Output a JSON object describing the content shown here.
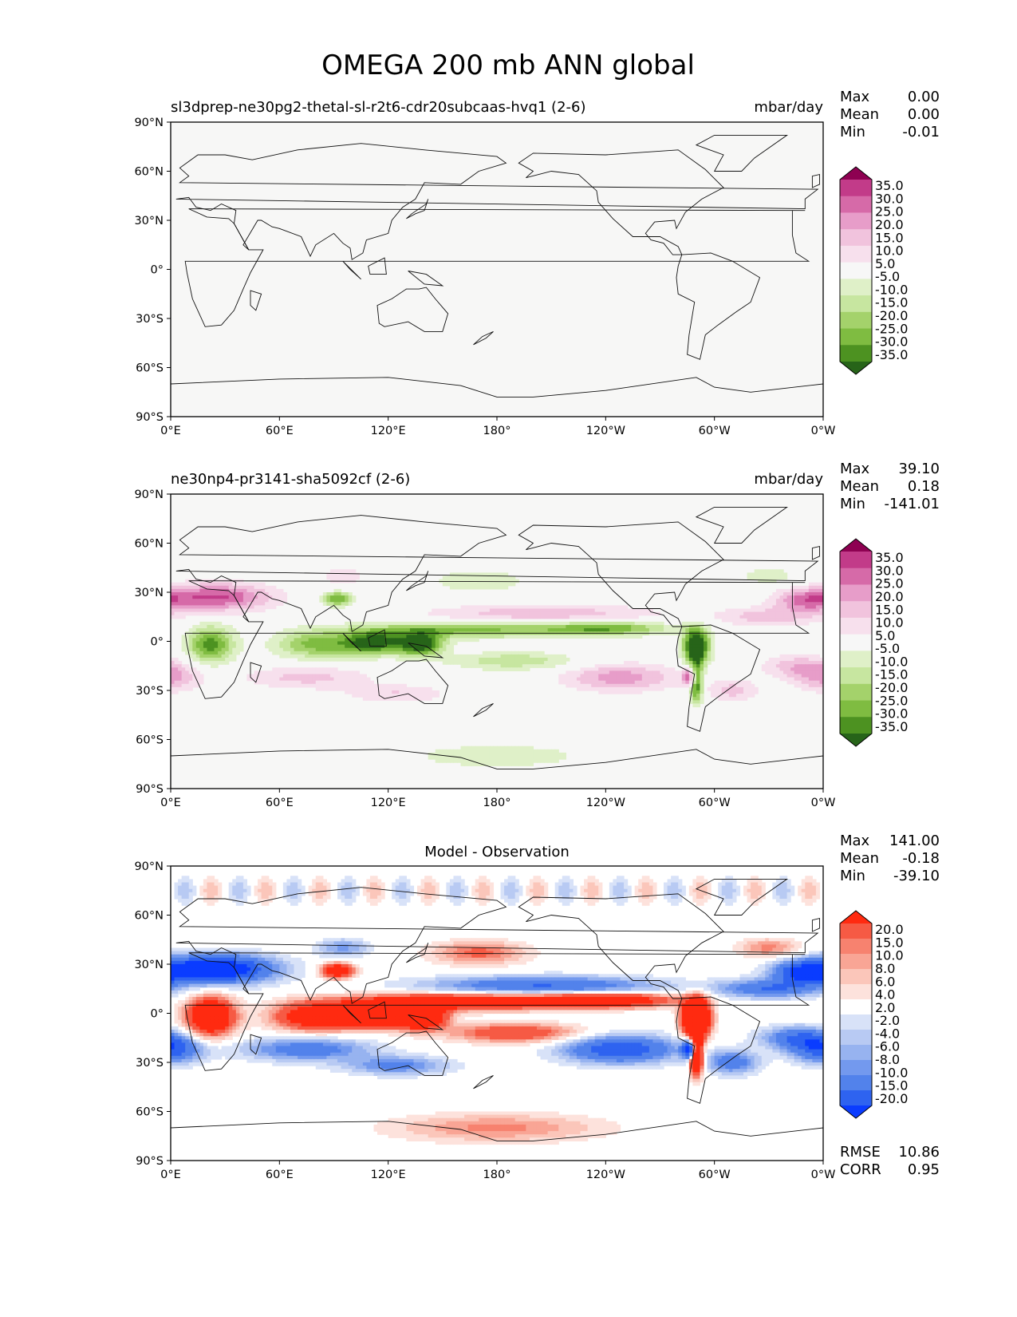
{
  "figure": {
    "title": "OMEGA 200 mb ANN global"
  },
  "colors": {
    "land_bg": "#f7f7f6",
    "coast": "#111111",
    "piyg": [
      "#276419",
      "#4d9221",
      "#7fbc41",
      "#a4d26b",
      "#c7e6a0",
      "#dff0c8",
      "#f7f7f7",
      "#f7e0ed",
      "#f1c3dd",
      "#e79dc9",
      "#d66aa8",
      "#c23b89",
      "#8e0152"
    ],
    "diff": [
      "#0a3cff",
      "#2e63f0",
      "#5282eb",
      "#7399ee",
      "#97b3f0",
      "#b8caf3",
      "#d8e2f8",
      "#ffffff",
      "#fde2dc",
      "#fbc6ba",
      "#f9a595",
      "#f7826f",
      "#f65a44",
      "#ff2a10"
    ]
  },
  "chart_data": [
    {
      "type": "heatmap",
      "title": "sl3dprep-ne30pg2-thetal-sl-r2t6-cdr20subcaas-hvq1 (2-6)",
      "units": "mbar/day",
      "stats": {
        "max": "0.00",
        "mean": "0.00",
        "min": "-0.01"
      },
      "stat_labels": {
        "max": "Max",
        "mean": "Mean",
        "min": "Min"
      },
      "x_ticks": [
        "0°E",
        "60°E",
        "120°E",
        "180°",
        "120°W",
        "60°W",
        "0°W"
      ],
      "y_ticks": [
        "90°N",
        "60°N",
        "30°N",
        "0°",
        "30°S",
        "60°S",
        "90°S"
      ],
      "colorbar": [
        "35.0",
        "30.0",
        "25.0",
        "20.0",
        "15.0",
        "10.0",
        "5.0",
        "-5.0",
        "-10.0",
        "-15.0",
        "-20.0",
        "-25.0",
        "-30.0",
        "-35.0"
      ],
      "field": "uniform zero"
    },
    {
      "type": "heatmap",
      "title": "ne30np4-pr3141-sha5092cf (2-6)",
      "units": "mbar/day",
      "stats": {
        "max": "39.10",
        "mean": "0.18",
        "min": "-141.01"
      },
      "stat_labels": {
        "max": "Max",
        "mean": "Mean",
        "min": "Min"
      },
      "x_ticks": [
        "0°E",
        "60°E",
        "120°E",
        "180°",
        "120°W",
        "60°W",
        "0°W"
      ],
      "y_ticks": [
        "90°N",
        "60°N",
        "30°N",
        "0°",
        "30°S",
        "60°S",
        "90°S"
      ],
      "colorbar": [
        "35.0",
        "30.0",
        "25.0",
        "20.0",
        "15.0",
        "10.0",
        "5.0",
        "-5.0",
        "-10.0",
        "-15.0",
        "-20.0",
        "-25.0",
        "-30.0",
        "-35.0"
      ],
      "field": "ascent (negative) in ITCZ, Maritime Continent, Amazon, Congo; subsidence (positive) in subtropics"
    },
    {
      "type": "heatmap",
      "title": "Model - Observation",
      "units": "",
      "stats": {
        "max": "141.00",
        "mean": "-0.18",
        "min": "-39.10"
      },
      "stat_labels": {
        "max": "Max",
        "mean": "Mean",
        "min": "Min"
      },
      "metrics": {
        "rmse": "10.86",
        "corr": "0.95"
      },
      "metric_labels": {
        "rmse": "RMSE",
        "corr": "CORR"
      },
      "x_ticks": [
        "0°E",
        "60°E",
        "120°E",
        "180°",
        "120°W",
        "60°W",
        "0°W"
      ],
      "y_ticks": [
        "90°N",
        "60°N",
        "30°N",
        "0°",
        "30°S",
        "60°S",
        "90°S"
      ],
      "colorbar": [
        "20.0",
        "15.0",
        "10.0",
        "8.0",
        "6.0",
        "4.0",
        "2.0",
        "-2.0",
        "-4.0",
        "-6.0",
        "-8.0",
        "-10.0",
        "-15.0",
        "-20.0"
      ],
      "field": "negated model field"
    }
  ]
}
